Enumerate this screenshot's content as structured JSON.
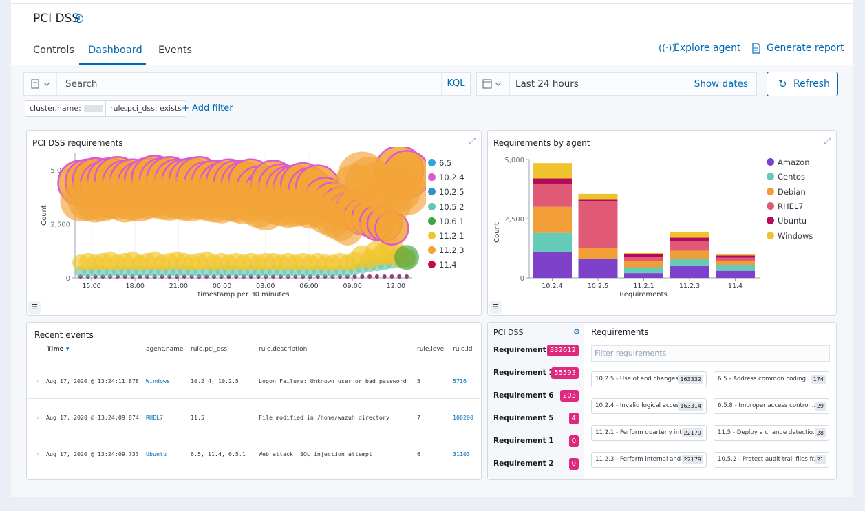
{
  "header": {
    "title": "PCI DSS",
    "tabs": [
      "Controls",
      "Dashboard",
      "Events"
    ],
    "active_tab": "Dashboard",
    "explore_agent": "Explore agent",
    "generate_report": "Generate report"
  },
  "search": {
    "placeholder": "Search",
    "language": "KQL",
    "date_range": "Last 24 hours",
    "show_dates": "Show dates",
    "refresh": "Refresh"
  },
  "filters": [
    {
      "label": "cluster.name:"
    },
    {
      "label": "rule.pci_dss: exists"
    }
  ],
  "add_filter": "+ Add filter",
  "colors": {
    "accent": "#006bb4",
    "badge": "#e0297e",
    "series": {
      "6.5": "#2ea6dd",
      "10.2.4": "#da5bcd",
      "10.2.5": "#3690c0",
      "10.5.2": "#62c7b6",
      "10.6.1": "#3ea543",
      "11.2.1": "#f2c52a",
      "11.2.3": "#f2a537",
      "11.4": "#c5094c",
      "Amazon": "#7e41c9",
      "Centos": "#64cbb8",
      "Debian": "#f19d38",
      "RHEL7": "#e05a75",
      "Ubuntu": "#b50a5a",
      "Windows": "#efc22e"
    }
  },
  "panels": {
    "requirements": {
      "title": "PCI DSS requirements",
      "xlabel": "timestamp per 30 minutes",
      "ylabel": "Count",
      "yticks": [
        "0",
        "2,500",
        "5,000"
      ],
      "xticks": [
        "15:00",
        "18:00",
        "21:00",
        "00:00",
        "03:00",
        "06:00",
        "09:00",
        "12:00"
      ],
      "legend": [
        "6.5",
        "10.2.4",
        "10.2.5",
        "10.5.2",
        "10.6.1",
        "11.2.1",
        "11.2.3",
        "11.4"
      ]
    },
    "by_agent": {
      "title": "Requirements by agent",
      "xlabel": "Requirements",
      "ylabel": "Count",
      "yticks": [
        "0",
        "2,500",
        "5,000"
      ],
      "legend": [
        "Amazon",
        "Centos",
        "Debian",
        "RHEL7",
        "Ubuntu",
        "Windows"
      ]
    },
    "recent_events": {
      "title": "Recent events",
      "columns": [
        "Time",
        "agent.name",
        "rule.pci_dss",
        "rule.description",
        "rule.level",
        "rule.id"
      ],
      "rows": [
        {
          "time": "Aug 17, 2020 @ 13:24:11.878",
          "agent": "Windows",
          "pci": "10.2.4, 10.2.5",
          "desc": "Logon Failure: Unknown user or bad password",
          "level": "5",
          "id": "5716"
        },
        {
          "time": "Aug 17, 2020 @ 13:24:09.874",
          "agent": "RHEL7",
          "pci": "11.5",
          "desc": "File modified in /home/wazuh directory",
          "level": "7",
          "id": "100200"
        },
        {
          "time": "Aug 17, 2020 @ 13:24:09.733",
          "agent": "Ubuntu",
          "pci": "6.5, 11.4, 6.5.1",
          "desc": "Web attack: SQL injection attempt",
          "level": "6",
          "id": "31103"
        }
      ]
    },
    "pci_summary": {
      "title": "PCI DSS",
      "requirements_title": "Requirements",
      "filter_placeholder": "Filter requirements",
      "items": [
        {
          "label": "Requirement 10",
          "count": "332612"
        },
        {
          "label": "Requirement 11",
          "count": "55593"
        },
        {
          "label": "Requirement 6",
          "count": "203"
        },
        {
          "label": "Requirement 5",
          "count": "4"
        },
        {
          "label": "Requirement 1",
          "count": "0"
        },
        {
          "label": "Requirement 2",
          "count": "0"
        }
      ],
      "cards": [
        {
          "text": "10.2.5 - Use of and changes to i...",
          "count": "163332"
        },
        {
          "text": "6.5 - Address common coding ...",
          "count": "174"
        },
        {
          "text": "10.2.4 - Invalid logical access att...",
          "count": "163314"
        },
        {
          "text": "6.5.8 - Improper access control ...",
          "count": "29"
        },
        {
          "text": "11.2.1 - Perform quarterly inter...",
          "count": "22179"
        },
        {
          "text": "11.5 - Deploy a change detectio...",
          "count": "28"
        },
        {
          "text": "11.2.3 - Perform internal and ex...",
          "count": "22179"
        },
        {
          "text": "10.5.2 - Protect audit trail files fr...",
          "count": "21"
        }
      ]
    }
  },
  "chart_data": [
    {
      "type": "scatter",
      "title": "PCI DSS requirements",
      "xlabel": "timestamp per 30 minutes",
      "ylabel": "Count",
      "ylim": [
        0,
        5800
      ],
      "x": [
        "14:30",
        "15:00",
        "15:30",
        "16:00",
        "16:30",
        "17:00",
        "17:30",
        "18:00",
        "18:30",
        "19:00",
        "19:30",
        "20:00",
        "20:30",
        "21:00",
        "21:30",
        "22:00",
        "22:30",
        "23:00",
        "23:30",
        "00:00",
        "00:30",
        "01:00",
        "01:30",
        "02:00",
        "02:30",
        "03:00",
        "03:30",
        "04:00",
        "04:30",
        "05:00",
        "05:30",
        "06:00",
        "06:30",
        "07:00",
        "07:30",
        "08:00",
        "08:30",
        "09:00",
        "09:30",
        "10:00",
        "10:30",
        "11:00",
        "11:30",
        "12:00",
        "12:30"
      ],
      "series": [
        {
          "name": "10.2.4",
          "values": [
            4400,
            4450,
            4500,
            4350,
            4500,
            4550,
            4400,
            4450,
            4350,
            4500,
            4600,
            4500,
            4550,
            4450,
            4450,
            4500,
            4550,
            4350,
            4400,
            4300,
            4450,
            4400,
            4350,
            4450,
            4150,
            4000,
            4400,
            4250,
            4150,
            4200,
            4300,
            4100,
            4200,
            3700,
            3500,
            3300,
            3100,
            3200,
            2850,
            2750,
            2550,
            2500,
            2300,
            5000,
            4800
          ]
        },
        {
          "name": "11.2.3",
          "values": [
            3550,
            3600,
            3500,
            3550,
            3700,
            3650,
            3500,
            3600,
            3550,
            3700,
            3800,
            3650,
            3600,
            3700,
            3600,
            3550,
            3700,
            3600,
            3500,
            3450,
            3600,
            3500,
            3400,
            3550,
            3200,
            3050,
            3450,
            3300,
            3200,
            3250,
            3350,
            3150,
            3250,
            2850,
            2650,
            2450,
            2200,
            4200,
            4700,
            4500,
            4300,
            3900,
            3500,
            4100,
            3900
          ]
        },
        {
          "name": "11.2.1",
          "values": [
            700,
            750,
            700,
            750,
            800,
            700,
            750,
            800,
            700,
            750,
            800,
            700,
            750,
            800,
            750,
            700,
            750,
            800,
            700,
            750,
            700,
            750,
            700,
            750,
            700,
            750,
            750,
            700,
            750,
            700,
            750,
            700,
            750,
            700,
            700,
            750,
            700,
            800,
            1000,
            850,
            1150,
            1100,
            1250,
            1000,
            900
          ]
        },
        {
          "name": "10.5.2",
          "values": [
            300,
            280,
            320,
            300,
            280,
            310,
            300,
            290,
            320,
            300,
            280,
            310,
            300,
            290,
            320,
            300,
            280,
            310,
            300,
            290,
            320,
            300,
            280,
            310,
            300,
            290,
            320,
            300,
            280,
            310,
            300,
            290,
            320,
            300,
            280,
            310,
            300,
            400,
            500,
            600,
            650,
            700,
            800,
            850,
            900
          ]
        },
        {
          "name": "10.6.1",
          "values": [
            0,
            0,
            0,
            0,
            0,
            0,
            0,
            0,
            0,
            0,
            0,
            0,
            0,
            0,
            0,
            0,
            0,
            0,
            0,
            0,
            0,
            0,
            0,
            0,
            0,
            0,
            0,
            0,
            0,
            0,
            0,
            0,
            0,
            0,
            0,
            0,
            0,
            0,
            0,
            0,
            0,
            0,
            0,
            0,
            950
          ]
        },
        {
          "name": "6.5",
          "values": [
            0,
            0,
            0,
            0,
            0,
            0,
            0,
            0,
            0,
            0,
            0,
            0,
            0,
            0,
            0,
            0,
            0,
            0,
            0,
            0,
            0,
            0,
            0,
            0,
            0,
            0,
            0,
            0,
            0,
            0,
            0,
            0,
            0,
            0,
            0,
            0,
            0,
            0,
            0,
            0,
            0,
            0,
            0,
            0,
            0
          ]
        },
        {
          "name": "10.2.5",
          "values": [
            0,
            0,
            0,
            0,
            0,
            0,
            0,
            0,
            0,
            0,
            0,
            0,
            0,
            0,
            0,
            0,
            0,
            0,
            0,
            0,
            0,
            0,
            0,
            0,
            0,
            0,
            0,
            0,
            0,
            0,
            0,
            0,
            0,
            0,
            0,
            0,
            0,
            0,
            0,
            0,
            0,
            0,
            0,
            0,
            0
          ]
        },
        {
          "name": "11.4",
          "values": [
            0,
            0,
            0,
            0,
            0,
            0,
            0,
            0,
            0,
            0,
            0,
            0,
            0,
            0,
            0,
            0,
            0,
            0,
            0,
            0,
            0,
            0,
            0,
            0,
            0,
            0,
            0,
            0,
            0,
            0,
            0,
            0,
            0,
            0,
            0,
            0,
            0,
            0,
            0,
            0,
            0,
            0,
            0,
            0,
            0
          ]
        }
      ]
    },
    {
      "type": "bar",
      "stacked": true,
      "title": "Requirements by agent",
      "xlabel": "Requirements",
      "ylabel": "Count",
      "ylim": [
        0,
        5000
      ],
      "categories": [
        "10.2.4",
        "10.2.5",
        "11.2.1",
        "11.2.3",
        "11.4"
      ],
      "series": [
        {
          "name": "Amazon",
          "values": [
            1100,
            800,
            200,
            500,
            300
          ]
        },
        {
          "name": "Centos",
          "values": [
            800,
            0,
            250,
            300,
            250
          ]
        },
        {
          "name": "Debian",
          "values": [
            1100,
            450,
            250,
            350,
            150
          ]
        },
        {
          "name": "RHEL7",
          "values": [
            950,
            2000,
            200,
            400,
            150
          ]
        },
        {
          "name": "Ubuntu",
          "values": [
            250,
            50,
            100,
            150,
            100
          ]
        },
        {
          "name": "Windows",
          "values": [
            650,
            250,
            50,
            250,
            50
          ]
        }
      ]
    }
  ]
}
